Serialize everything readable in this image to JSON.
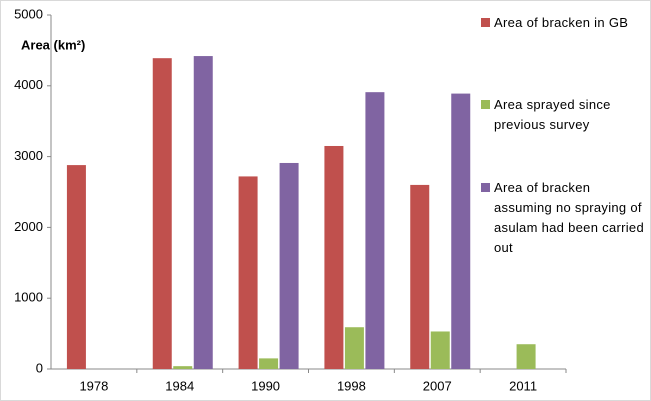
{
  "chart_data": {
    "type": "bar",
    "y_label": "Area (km²)",
    "categories": [
      "1978",
      "1984",
      "1990",
      "1998",
      "2007",
      "2011"
    ],
    "series": [
      {
        "name": "Area of bracken in GB",
        "color": "#c0504d",
        "values": [
          2880,
          4390,
          2720,
          3150,
          2600,
          null
        ]
      },
      {
        "name": "Area sprayed since previous survey",
        "color": "#9bbb59",
        "values": [
          null,
          40,
          150,
          590,
          530,
          350
        ]
      },
      {
        "name": "Area of bracken assuming no spraying of asulam had been carried out",
        "color": "#8064a2",
        "values": [
          null,
          4420,
          2910,
          3910,
          3890,
          null
        ]
      }
    ],
    "ylim": [
      0,
      5000
    ],
    "yticks": [
      0,
      1000,
      2000,
      3000,
      4000,
      5000
    ],
    "grid": false,
    "legend": "right"
  }
}
